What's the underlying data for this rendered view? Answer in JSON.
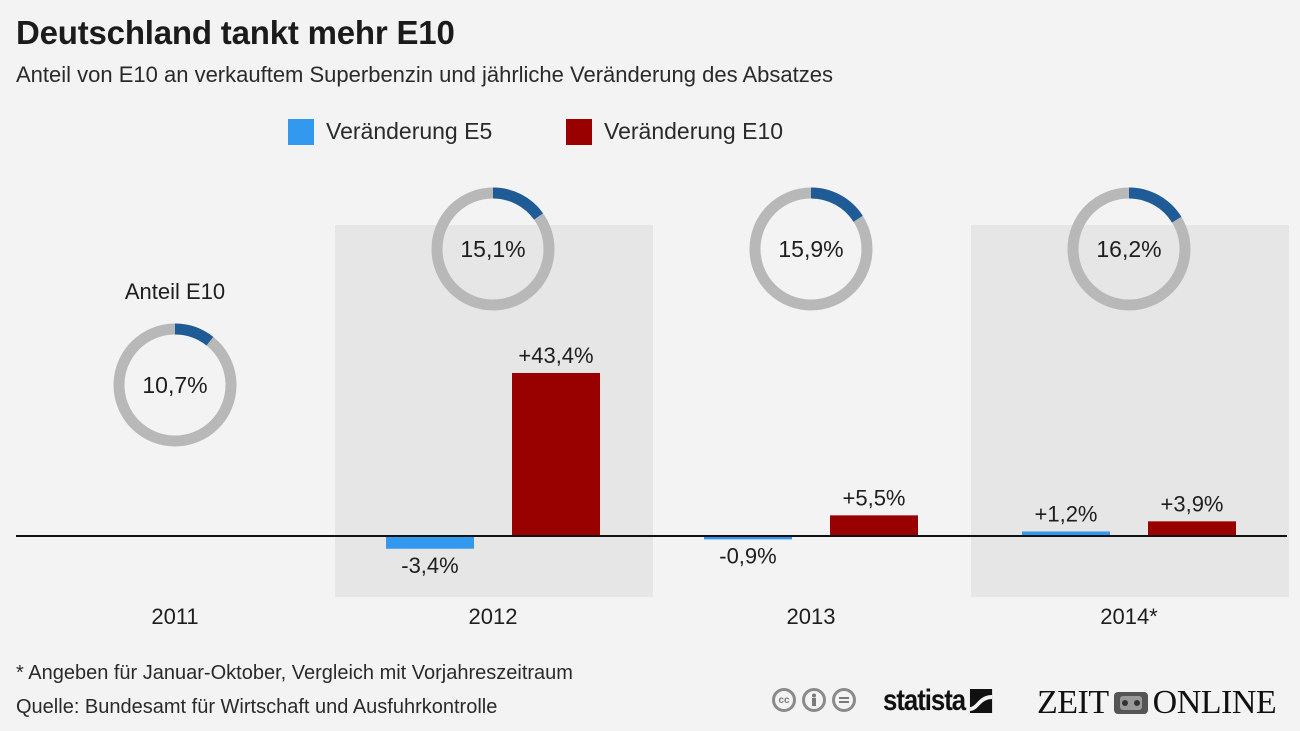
{
  "header": {
    "title": "Deutschland tankt mehr E10",
    "subtitle": "Anteil von E10 an verkauftem Superbenzin und jährliche Veränderung des Absatzes"
  },
  "legend": [
    {
      "label": "Veränderung E5",
      "color": "#3399ee"
    },
    {
      "label": "Veränderung E10",
      "color": "#990000"
    }
  ],
  "colors": {
    "background": "#f3f3f3",
    "band": "#e6e6e6",
    "donut_track": "#b8b8b8",
    "donut_fill": "#1f5b96",
    "axis": "#111111"
  },
  "chart_data": {
    "type": "bar",
    "title": "Deutschland tankt mehr E10",
    "subtitle": "Anteil von E10 an verkauftem Superbenzin und jährliche Veränderung des Absatzes",
    "xlabel": "",
    "ylabel": "",
    "categories": [
      "2011",
      "2012",
      "2013",
      "2014*"
    ],
    "series": [
      {
        "name": "Veränderung E5",
        "color": "#3399ee",
        "values": [
          null,
          -3.4,
          -0.9,
          1.2
        ],
        "labels": [
          "",
          "-3,4%",
          "-0,9%",
          "+1,2%"
        ]
      },
      {
        "name": "Veränderung E10",
        "color": "#990000",
        "values": [
          null,
          43.4,
          5.5,
          3.9
        ],
        "labels": [
          "",
          "+43,4%",
          "+5,5%",
          "+3,9%"
        ]
      }
    ],
    "share_e10": {
      "title": "Anteil E10",
      "values": [
        10.7,
        15.1,
        15.9,
        16.2
      ],
      "labels": [
        "10,7%",
        "15,1%",
        "15,9%",
        "16,2%"
      ]
    },
    "ylim": [
      -5,
      45
    ],
    "grid": false,
    "legend_position": "top-center",
    "shaded_categories": [
      "2012",
      "2014*"
    ]
  },
  "footer": {
    "note": "* Angeben für Januar-Oktober, Vergleich mit Vorjahreszeitraum",
    "source": "Quelle: Bundesamt für Wirtschaft und Ausfuhrkontrolle",
    "cc_icons": [
      "cc",
      "by",
      "nd"
    ],
    "brand_statista": "statista",
    "brand_zeit_left": "ZEIT",
    "brand_zeit_right": "ONLINE"
  }
}
